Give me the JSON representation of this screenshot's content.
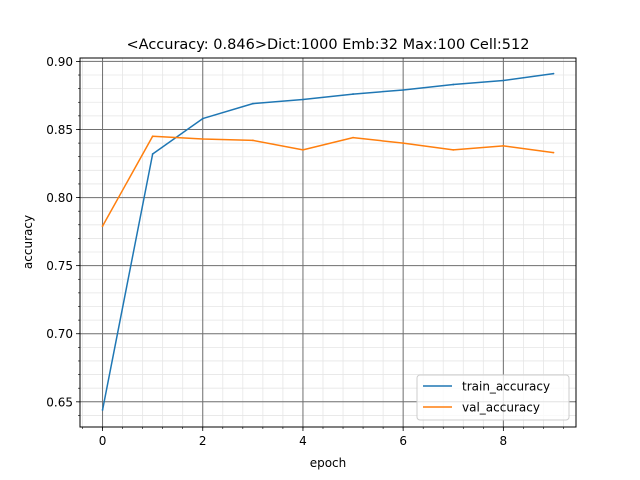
{
  "chart_data": {
    "type": "line",
    "title": "<Accuracy: 0.846>Dict:1000 Emb:32 Max:100 Cell:512",
    "xlabel": "epoch",
    "ylabel": "accuracy",
    "xlim": [
      -0.45,
      9.45
    ],
    "ylim": [
      0.6315,
      0.9025
    ],
    "x_ticks": [
      0,
      2,
      4,
      6,
      8
    ],
    "y_ticks": [
      0.65,
      0.7,
      0.75,
      0.8,
      0.85,
      0.9
    ],
    "x_tick_labels": [
      "0",
      "2",
      "4",
      "6",
      "8"
    ],
    "y_tick_labels": [
      "0.65",
      "0.70",
      "0.75",
      "0.80",
      "0.85",
      "0.90"
    ],
    "x_minor_step": 0.4,
    "y_minor_step": 0.01,
    "grid": true,
    "legend_position": "lower-right",
    "x": [
      0,
      1,
      2,
      3,
      4,
      5,
      6,
      7,
      8,
      9
    ],
    "series": [
      {
        "name": "train_accuracy",
        "color": "#1f77b4",
        "values": [
          0.644,
          0.832,
          0.858,
          0.869,
          0.872,
          0.876,
          0.879,
          0.883,
          0.886,
          0.891
        ]
      },
      {
        "name": "val_accuracy",
        "color": "#ff7f0e",
        "values": [
          0.779,
          0.845,
          0.843,
          0.842,
          0.835,
          0.844,
          0.84,
          0.835,
          0.838,
          0.833
        ]
      }
    ]
  }
}
